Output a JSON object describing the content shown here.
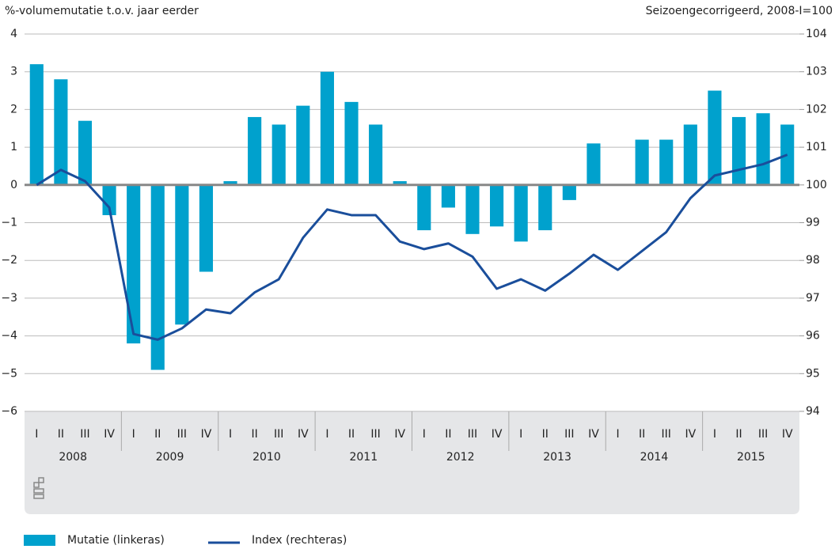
{
  "chart_data": {
    "type": "bar",
    "y_label": "%-volumemutatie t.o.v. jaar eerder",
    "y2_label": "Seizoengecorrigeerd, 2008-I=100",
    "categories": [
      "I",
      "II",
      "III",
      "IV",
      "I",
      "II",
      "III",
      "IV",
      "I",
      "II",
      "III",
      "IV",
      "I",
      "II",
      "III",
      "IV",
      "I",
      "II",
      "III",
      "IV",
      "I",
      "II",
      "III",
      "IV",
      "I",
      "II",
      "III",
      "IV",
      "I",
      "II",
      "III",
      "IV"
    ],
    "years": [
      "2008",
      "2009",
      "2010",
      "2011",
      "2012",
      "2013",
      "2014",
      "2015"
    ],
    "series": [
      {
        "name": "Mutatie (linkeras)",
        "type": "bar",
        "color": "#00a1cd",
        "values": [
          3.2,
          2.8,
          1.7,
          -0.8,
          -4.2,
          -4.9,
          -3.7,
          -2.3,
          0.1,
          1.8,
          1.6,
          2.1,
          3.0,
          2.2,
          1.6,
          0.1,
          -1.2,
          -0.6,
          -1.3,
          -1.1,
          -1.5,
          -1.2,
          -0.4,
          1.1,
          0,
          1.2,
          1.2,
          1.6,
          2.5,
          1.8,
          1.9,
          1.6
        ]
      },
      {
        "name": "Index (rechteras)",
        "type": "line",
        "axis": "y2",
        "color": "#1a4e9b",
        "values": [
          100,
          100.4,
          100.1,
          99.4,
          96.05,
          95.9,
          96.2,
          96.7,
          96.6,
          97.15,
          97.5,
          98.6,
          99.35,
          99.2,
          99.2,
          98.5,
          98.3,
          98.45,
          98.1,
          97.25,
          97.5,
          97.2,
          97.65,
          98.15,
          97.75,
          98.25,
          98.75,
          99.65,
          100.25,
          100.4,
          100.55,
          100.8
        ]
      }
    ],
    "ylim": [
      -6,
      4
    ],
    "yticks": [
      {
        "value": -6,
        "label": "−6"
      },
      {
        "value": -5,
        "label": "−5"
      },
      {
        "value": -4,
        "label": "−4"
      },
      {
        "value": -3,
        "label": "−3"
      },
      {
        "value": -2,
        "label": "−2"
      },
      {
        "value": -1,
        "label": "−1"
      },
      0,
      1,
      2,
      3,
      4
    ],
    "y2lim": [
      94,
      104
    ],
    "y2ticks": [
      94,
      95,
      96,
      97,
      98,
      99,
      100,
      101,
      102,
      103,
      104
    ],
    "grid": true
  }
}
